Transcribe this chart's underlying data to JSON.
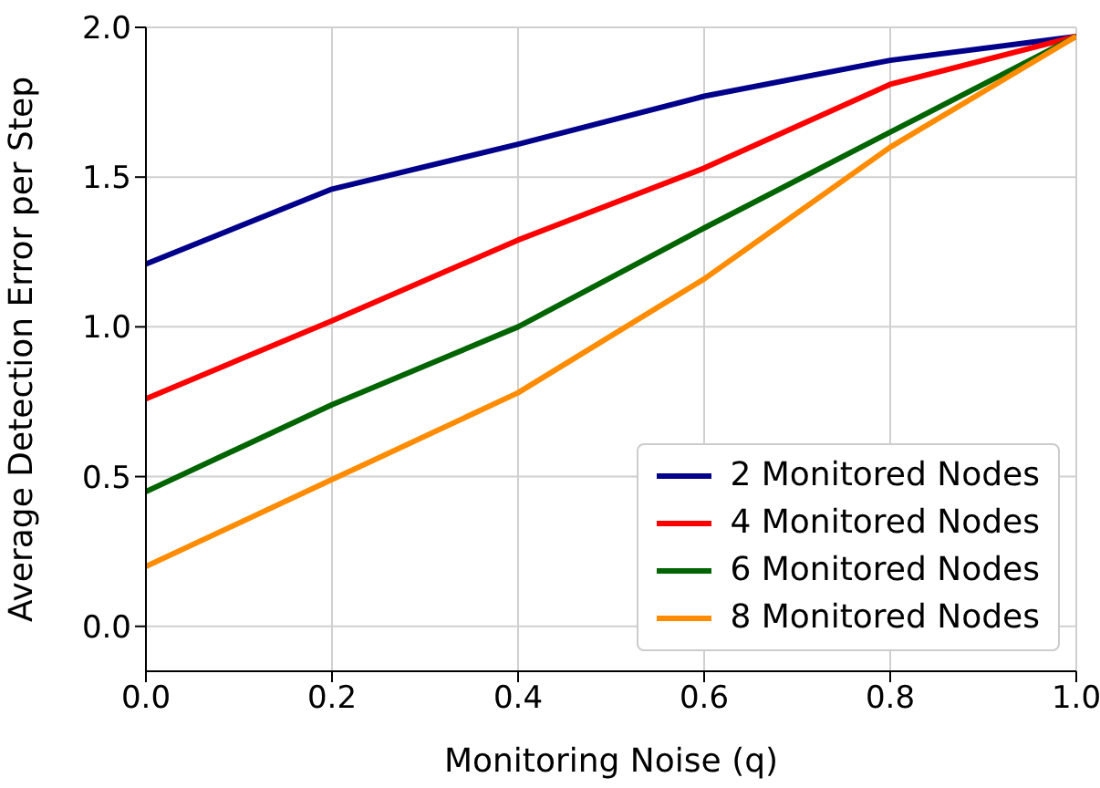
{
  "chart_data": {
    "type": "line",
    "xlabel": "Monitoring Noise (q)",
    "ylabel": "Average Detection Error per Step",
    "x": [
      0,
      0.2,
      0.4,
      0.6,
      0.8,
      1.0
    ],
    "series": [
      {
        "name": "2 Monitored Nodes",
        "color": "#00008b",
        "values": [
          1.21,
          1.46,
          1.61,
          1.77,
          1.89,
          1.97
        ]
      },
      {
        "name": "4 Monitored Nodes",
        "color": "#ff0000",
        "values": [
          0.76,
          1.02,
          1.29,
          1.53,
          1.81,
          1.97
        ]
      },
      {
        "name": "6 Monitored Nodes",
        "color": "#006400",
        "values": [
          0.45,
          0.74,
          1.0,
          1.33,
          1.65,
          1.97
        ]
      },
      {
        "name": "8 Monitored Nodes",
        "color": "#ff8c00",
        "values": [
          0.2,
          0.49,
          0.78,
          1.16,
          1.6,
          1.97
        ]
      }
    ],
    "xlim": [
      0,
      1
    ],
    "xticks": [
      {
        "value": 0,
        "label": "0.0"
      },
      {
        "value": 0.2,
        "label": "0.2"
      },
      {
        "value": 0.4,
        "label": "0.4"
      },
      {
        "value": 0.6,
        "label": "0.6"
      },
      {
        "value": 0.8,
        "label": "0.8"
      },
      {
        "value": 1,
        "label": "1.0"
      }
    ],
    "ylim": [
      -0.15,
      2.0
    ],
    "yticks": [
      {
        "value": 0,
        "label": "0.0"
      },
      {
        "value": 0.5,
        "label": "0.5"
      },
      {
        "value": 1,
        "label": "1.0"
      },
      {
        "value": 1.5,
        "label": "1.5"
      },
      {
        "value": 2,
        "label": "2.0"
      }
    ],
    "grid": true,
    "legend": "bottom right",
    "marker": "none",
    "line_style": "solid"
  }
}
